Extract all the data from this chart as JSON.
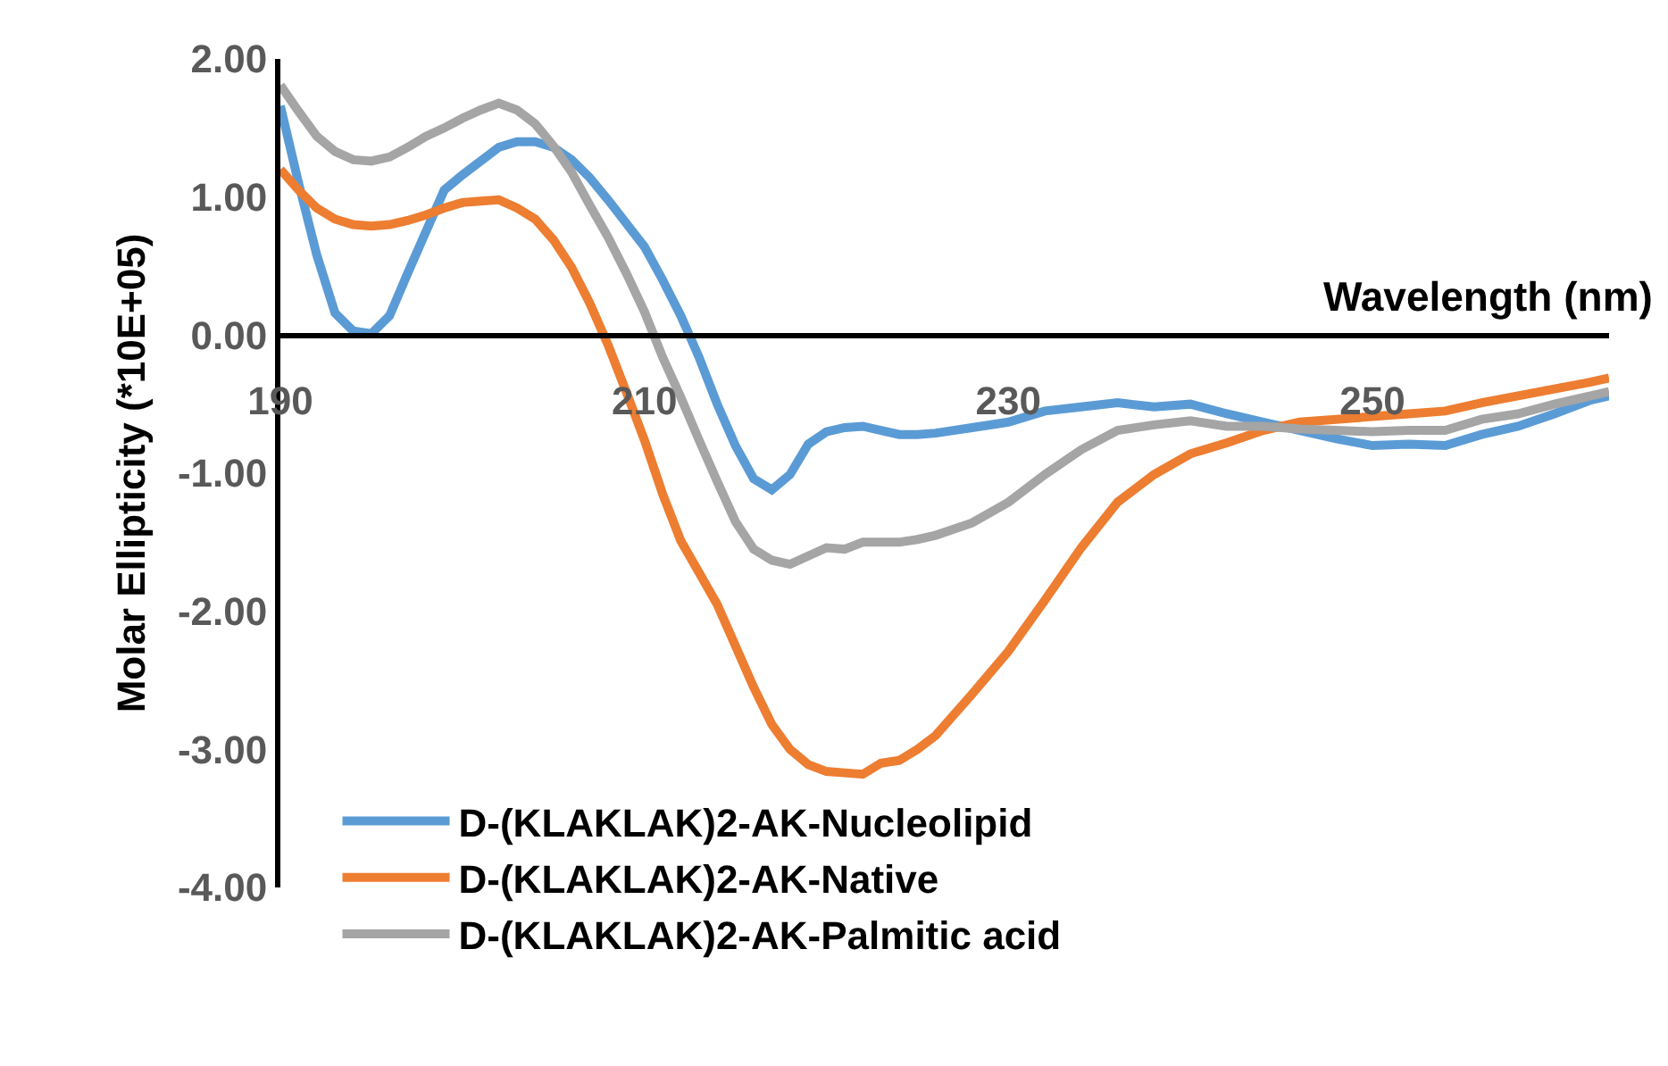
{
  "chart_data": {
    "type": "line",
    "xlabel": "Wavelength (nm)",
    "ylabel": "Molar Ellipticity (*10E+05)",
    "x": [
      190,
      191,
      192,
      193,
      194,
      195,
      196,
      197,
      198,
      199,
      200,
      201,
      202,
      203,
      204,
      205,
      206,
      207,
      208,
      209,
      210,
      211,
      212,
      213,
      214,
      215,
      216,
      217,
      218,
      219,
      220,
      221,
      222,
      223,
      224,
      225,
      226,
      228,
      230,
      232,
      234,
      236,
      238,
      240,
      242,
      244,
      246,
      248,
      250,
      252,
      254,
      256,
      258,
      260,
      262,
      263
    ],
    "series": [
      {
        "name": "D-(KLAKLAK)2-AK-Nucleolipid",
        "color": "#5b9bd5",
        "values": [
          1.66,
          1.1,
          0.58,
          0.16,
          0.03,
          0.01,
          0.14,
          0.45,
          0.75,
          1.05,
          1.16,
          1.26,
          1.36,
          1.4,
          1.4,
          1.36,
          1.27,
          1.14,
          0.98,
          0.81,
          0.64,
          0.4,
          0.14,
          -0.16,
          -0.5,
          -0.8,
          -1.04,
          -1.12,
          -1.01,
          -0.79,
          -0.7,
          -0.67,
          -0.66,
          -0.69,
          -0.72,
          -0.72,
          -0.71,
          -0.67,
          -0.63,
          -0.55,
          -0.52,
          -0.49,
          -0.52,
          -0.5,
          -0.57,
          -0.63,
          -0.69,
          -0.75,
          -0.8,
          -0.79,
          -0.8,
          -0.72,
          -0.66,
          -0.57,
          -0.47,
          -0.44
        ]
      },
      {
        "name": "D-(KLAKLAK)2-AK-Native",
        "color": "#ed7d31",
        "values": [
          1.2,
          1.05,
          0.92,
          0.84,
          0.8,
          0.79,
          0.8,
          0.83,
          0.87,
          0.92,
          0.96,
          0.97,
          0.98,
          0.92,
          0.84,
          0.69,
          0.49,
          0.23,
          -0.07,
          -0.41,
          -0.76,
          -1.15,
          -1.49,
          -1.72,
          -1.95,
          -2.25,
          -2.55,
          -2.82,
          -3.0,
          -3.11,
          -3.16,
          -3.17,
          -3.18,
          -3.1,
          -3.08,
          -3.0,
          -2.9,
          -2.6,
          -2.29,
          -1.92,
          -1.54,
          -1.21,
          -1.01,
          -0.86,
          -0.78,
          -0.69,
          -0.63,
          -0.61,
          -0.59,
          -0.57,
          -0.55,
          -0.49,
          -0.44,
          -0.39,
          -0.34,
          -0.31
        ]
      },
      {
        "name": "D-(KLAKLAK)2-AK-Palmitic acid",
        "color": "#a5a5a5",
        "values": [
          1.81,
          1.62,
          1.44,
          1.33,
          1.27,
          1.26,
          1.29,
          1.36,
          1.44,
          1.5,
          1.57,
          1.63,
          1.68,
          1.63,
          1.53,
          1.37,
          1.18,
          0.94,
          0.71,
          0.45,
          0.17,
          -0.16,
          -0.45,
          -0.76,
          -1.06,
          -1.35,
          -1.55,
          -1.63,
          -1.66,
          -1.6,
          -1.54,
          -1.55,
          -1.5,
          -1.5,
          -1.5,
          -1.48,
          -1.45,
          -1.36,
          -1.21,
          -1.01,
          -0.83,
          -0.69,
          -0.65,
          -0.62,
          -0.66,
          -0.66,
          -0.68,
          -0.69,
          -0.7,
          -0.69,
          -0.69,
          -0.61,
          -0.57,
          -0.5,
          -0.44,
          -0.41
        ]
      }
    ],
    "xlim": [
      190,
      263
    ],
    "xticks": [
      190,
      210,
      230,
      250
    ],
    "ylim": [
      -4,
      2
    ],
    "yticks": [
      {
        "value": 2,
        "label": "2.00"
      },
      {
        "value": 1,
        "label": "1.00"
      },
      {
        "value": 0,
        "label": "0.00"
      },
      {
        "value": -1,
        "label": "-1.00"
      },
      {
        "value": -2,
        "label": "-2.00"
      },
      {
        "value": -3,
        "label": "-3.00"
      },
      {
        "value": -4,
        "label": "-4.00"
      }
    ],
    "legend": "bottom left"
  }
}
